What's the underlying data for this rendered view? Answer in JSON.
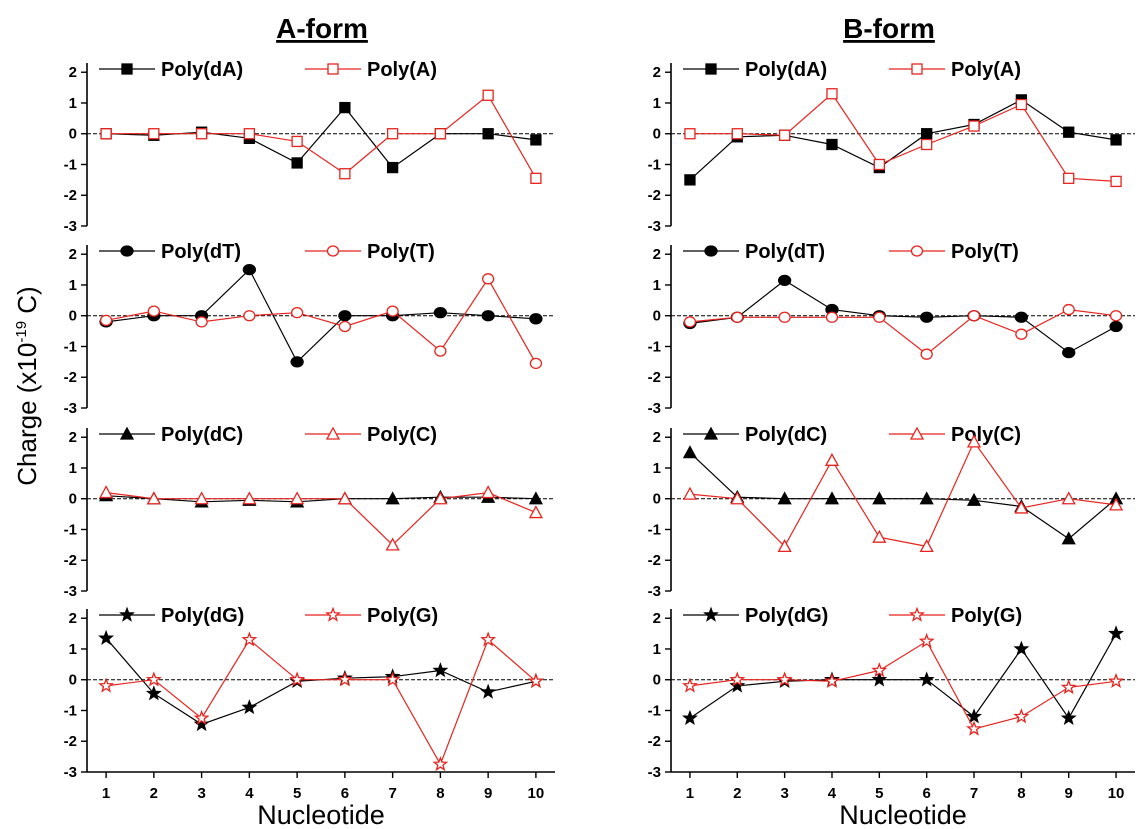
{
  "figure": {
    "ylabel_main": "Charge (x10",
    "ylabel_exp": "-19",
    "ylabel_unit": " C)",
    "colors": {
      "dna": "#000000",
      "rna": "#e8231e",
      "zero_line": "#000000"
    }
  },
  "chart_data": [
    {
      "type": "line",
      "column_title": "A-form",
      "xlabel": "Nucleotide",
      "x": [
        1,
        2,
        3,
        4,
        5,
        6,
        7,
        8,
        9,
        10
      ],
      "xlim": [
        0.6,
        10.4
      ],
      "yticks": [
        -3,
        -2,
        -1,
        0,
        1,
        2
      ],
      "ylim": [
        -3,
        2.3
      ],
      "panels": [
        {
          "series": [
            {
              "name": "Poly(dA)",
              "marker": "square-filled",
              "values": [
                0,
                -0.05,
                0.05,
                -0.15,
                -0.95,
                0.85,
                -1.1,
                0,
                0,
                -0.2
              ]
            },
            {
              "name": "Poly(A)",
              "marker": "square-open",
              "values": [
                0,
                0,
                0,
                0,
                -0.25,
                -1.3,
                0,
                0,
                1.25,
                -1.45
              ]
            }
          ]
        },
        {
          "series": [
            {
              "name": "Poly(dT)",
              "marker": "circle-filled",
              "values": [
                -0.2,
                0,
                0,
                1.5,
                -1.5,
                0,
                0,
                0.1,
                0,
                -0.1
              ]
            },
            {
              "name": "Poly(T)",
              "marker": "circle-open",
              "values": [
                -0.15,
                0.15,
                -0.2,
                0,
                0.1,
                -0.35,
                0.15,
                -1.15,
                1.2,
                -1.55
              ]
            }
          ]
        },
        {
          "series": [
            {
              "name": "Poly(dC)",
              "marker": "triangle-filled",
              "values": [
                0.1,
                0,
                -0.1,
                -0.05,
                -0.1,
                0,
                0,
                0.05,
                0.05,
                0
              ]
            },
            {
              "name": "Poly(C)",
              "marker": "triangle-open",
              "values": [
                0.2,
                0,
                0,
                0,
                0,
                0,
                -1.5,
                0,
                0.2,
                -0.45
              ]
            }
          ]
        },
        {
          "series": [
            {
              "name": "Poly(dG)",
              "marker": "star-filled",
              "values": [
                1.35,
                -0.45,
                -1.45,
                -0.9,
                -0.05,
                0.05,
                0.1,
                0.3,
                -0.4,
                -0.05
              ]
            },
            {
              "name": "Poly(G)",
              "marker": "star-open",
              "values": [
                -0.2,
                0,
                -1.25,
                1.3,
                0,
                0,
                0,
                -2.75,
                1.3,
                -0.05
              ]
            }
          ]
        }
      ]
    },
    {
      "type": "line",
      "column_title": "B-form",
      "xlabel": "Nucleotide",
      "x": [
        1,
        2,
        3,
        4,
        5,
        6,
        7,
        8,
        9,
        10
      ],
      "xlim": [
        0.6,
        10.4
      ],
      "yticks": [
        -3,
        -2,
        -1,
        0,
        1,
        2
      ],
      "ylim": [
        -3,
        2.3
      ],
      "panels": [
        {
          "series": [
            {
              "name": "Poly(dA)",
              "marker": "square-filled",
              "values": [
                -1.5,
                -0.1,
                -0.05,
                -0.35,
                -1.1,
                0,
                0.3,
                1.1,
                0.05,
                -0.2
              ]
            },
            {
              "name": "Poly(A)",
              "marker": "square-open",
              "values": [
                0,
                0,
                -0.05,
                1.3,
                -1.0,
                -0.35,
                0.25,
                0.95,
                -1.45,
                -1.55
              ]
            }
          ]
        },
        {
          "series": [
            {
              "name": "Poly(dT)",
              "marker": "circle-filled",
              "values": [
                -0.25,
                -0.05,
                1.15,
                0.2,
                0,
                -0.05,
                0,
                -0.05,
                -1.2,
                -0.35
              ]
            },
            {
              "name": "Poly(T)",
              "marker": "circle-open",
              "values": [
                -0.2,
                -0.05,
                -0.05,
                -0.05,
                -0.05,
                -1.25,
                0,
                -0.6,
                0.2,
                0
              ]
            }
          ]
        },
        {
          "series": [
            {
              "name": "Poly(dC)",
              "marker": "triangle-filled",
              "values": [
                1.5,
                0.05,
                0,
                0,
                0,
                0,
                -0.05,
                -0.25,
                -1.3,
                0
              ]
            },
            {
              "name": "Poly(C)",
              "marker": "triangle-open",
              "values": [
                0.15,
                0,
                -1.55,
                1.25,
                -1.25,
                -1.55,
                1.85,
                -0.3,
                0,
                -0.2
              ]
            }
          ]
        },
        {
          "series": [
            {
              "name": "Poly(dG)",
              "marker": "star-filled",
              "values": [
                -1.25,
                -0.2,
                -0.05,
                0,
                0,
                0,
                -1.2,
                1.0,
                -1.25,
                1.5
              ]
            },
            {
              "name": "Poly(G)",
              "marker": "star-open",
              "values": [
                -0.2,
                0,
                0,
                -0.05,
                0.3,
                1.25,
                -1.6,
                -1.2,
                -0.25,
                -0.05
              ]
            }
          ]
        }
      ]
    }
  ]
}
